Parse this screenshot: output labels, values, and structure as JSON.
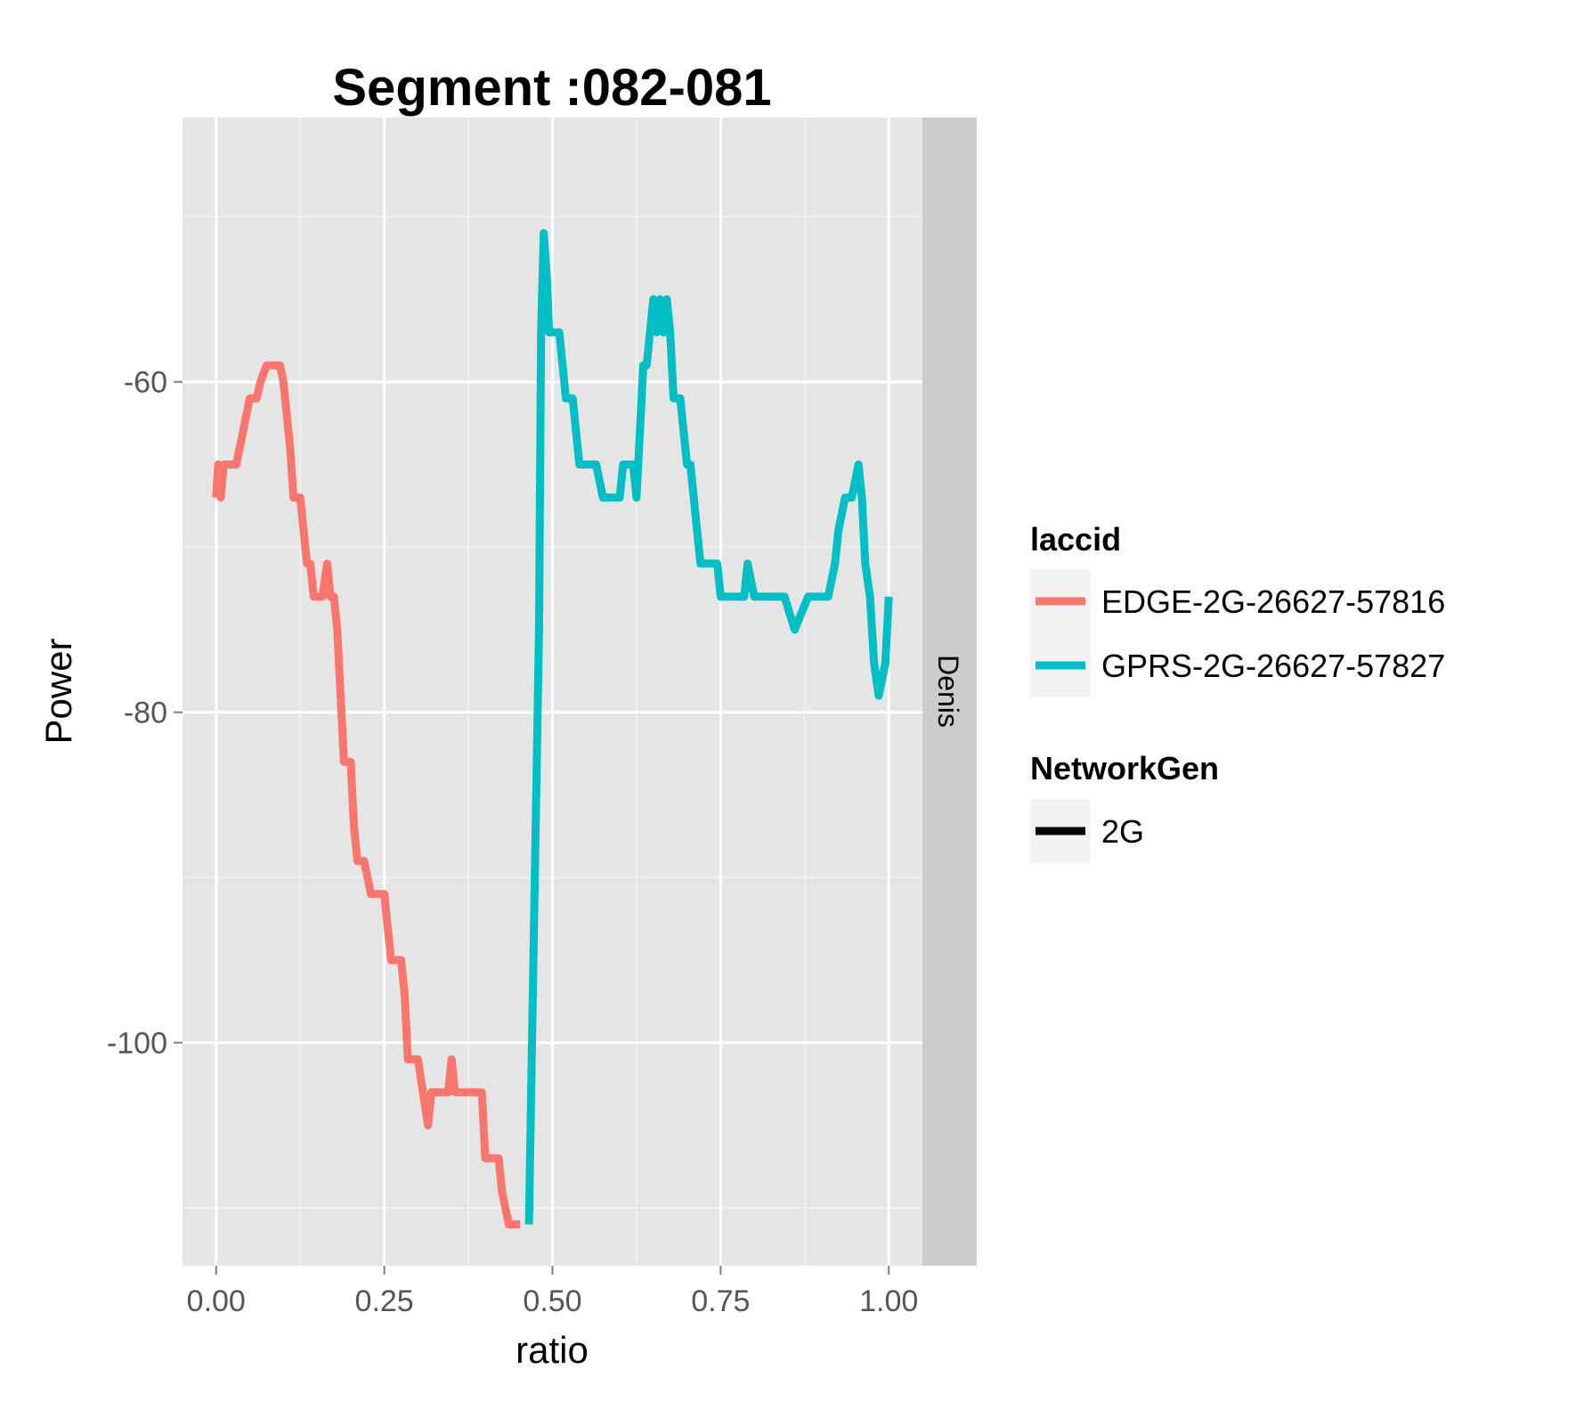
{
  "chart_data": {
    "type": "line",
    "title": "Segment :082-081",
    "xlabel": "ratio",
    "ylabel": "Power",
    "xlim": [
      -0.05,
      1.05
    ],
    "ylim": [
      -113.5,
      -44
    ],
    "x_ticks": [
      0,
      0.25,
      0.5,
      0.75,
      1
    ],
    "x_tick_labels": [
      "0.00",
      "0.25",
      "0.50",
      "0.75",
      "1.00"
    ],
    "y_ticks": [
      -60,
      -80,
      -100
    ],
    "y_tick_labels": [
      "-60",
      "-80",
      "-100"
    ],
    "grid": true,
    "facet_label": "Denis",
    "legend_position": "right",
    "legends": [
      {
        "title": "laccid",
        "entries": [
          {
            "label": "EDGE-2G-26627-57816",
            "color": "#F8766D"
          },
          {
            "label": "GPRS-2G-26627-57827",
            "color": "#00BFC4"
          }
        ]
      },
      {
        "title": "NetworkGen",
        "entries": [
          {
            "label": "2G",
            "color": "#000000"
          }
        ]
      }
    ],
    "series": [
      {
        "name": "EDGE-2G-26627-57816",
        "color": "#F8766D",
        "x": [
          0,
          0.003,
          0.007,
          0.011,
          0.015,
          0.02,
          0.03,
          0.04,
          0.05,
          0.06,
          0.066,
          0.075,
          0.085,
          0.095,
          0.1,
          0.105,
          0.11,
          0.115,
          0.125,
          0.13,
          0.135,
          0.14,
          0.145,
          0.15,
          0.158,
          0.165,
          0.17,
          0.175,
          0.18,
          0.185,
          0.19,
          0.2,
          0.205,
          0.21,
          0.215,
          0.22,
          0.23,
          0.235,
          0.245,
          0.25,
          0.255,
          0.26,
          0.275,
          0.28,
          0.285,
          0.295,
          0.3,
          0.315,
          0.32,
          0.325,
          0.33,
          0.345,
          0.35,
          0.355,
          0.36,
          0.365,
          0.375,
          0.385,
          0.395,
          0.4,
          0.42,
          0.425,
          0.435,
          0.44,
          0.452
        ],
        "y": [
          -67,
          -65,
          -67,
          -65,
          -65,
          -65,
          -65,
          -63,
          -61,
          -61,
          -60,
          -59,
          -59,
          -59,
          -60,
          -62,
          -64,
          -67,
          -67,
          -69,
          -71,
          -71,
          -73,
          -73,
          -73,
          -71,
          -73,
          -73,
          -75,
          -79,
          -83,
          -83,
          -87,
          -89,
          -89,
          -89,
          -91,
          -91,
          -91,
          -91,
          -93,
          -95,
          -95,
          -97,
          -101,
          -101,
          -101,
          -105,
          -103,
          -103,
          -103,
          -103,
          -101,
          -103,
          -103,
          -103,
          -103,
          -103,
          -103,
          -107,
          -107,
          -109,
          -111,
          -111,
          -111
        ]
      },
      {
        "name": "GPRS-2G-26627-57827",
        "color": "#00BFC4",
        "x": [
          0.465,
          0.47,
          0.475,
          0.48,
          0.483,
          0.487,
          0.492,
          0.495,
          0.505,
          0.51,
          0.52,
          0.53,
          0.54,
          0.55,
          0.56,
          0.565,
          0.575,
          0.585,
          0.6,
          0.605,
          0.615,
          0.62,
          0.625,
          0.635,
          0.64,
          0.645,
          0.65,
          0.655,
          0.66,
          0.665,
          0.67,
          0.675,
          0.68,
          0.69,
          0.695,
          0.7,
          0.705,
          0.715,
          0.72,
          0.73,
          0.745,
          0.75,
          0.76,
          0.77,
          0.78,
          0.785,
          0.79,
          0.8,
          0.81,
          0.83,
          0.84,
          0.845,
          0.86,
          0.88,
          0.89,
          0.9,
          0.91,
          0.92,
          0.925,
          0.935,
          0.94,
          0.945,
          0.955,
          0.96,
          0.965,
          0.972,
          0.978,
          0.985,
          0.995,
          1.0
        ],
        "y": [
          -111,
          -99,
          -87,
          -75,
          -57,
          -51,
          -54,
          -57,
          -57,
          -57,
          -61,
          -61,
          -65,
          -65,
          -65,
          -65,
          -67,
          -67,
          -67,
          -65,
          -65,
          -65,
          -67,
          -59,
          -59,
          -57,
          -55,
          -57,
          -55,
          -57,
          -55,
          -57,
          -61,
          -61,
          -63,
          -65,
          -65,
          -69,
          -71,
          -71,
          -71,
          -73,
          -73,
          -73,
          -73,
          -73,
          -71,
          -73,
          -73,
          -73,
          -73,
          -73,
          -75,
          -73,
          -73,
          -73,
          -73,
          -71,
          -69,
          -67,
          -67,
          -67,
          -65,
          -67,
          -71,
          -73,
          -77,
          -79,
          -77,
          -73
        ]
      }
    ]
  }
}
